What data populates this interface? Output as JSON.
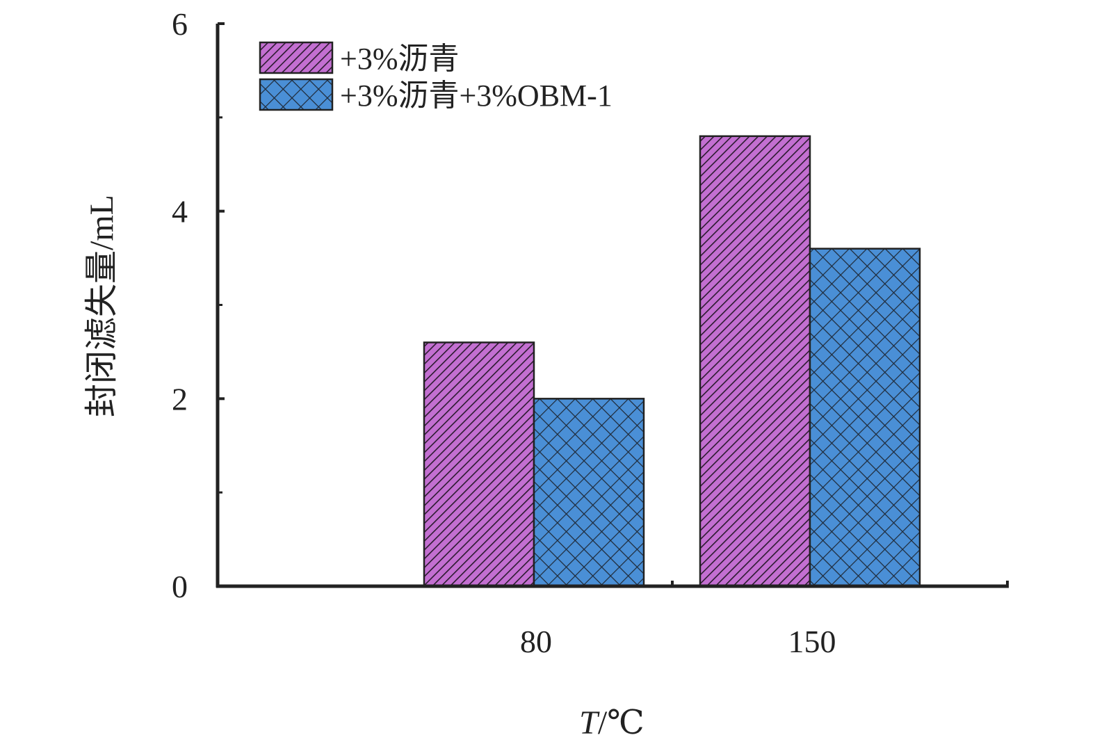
{
  "chart_data": {
    "type": "bar",
    "categories": [
      "80",
      "150"
    ],
    "series": [
      {
        "name": "+3%沥青",
        "values": [
          2.6,
          4.8
        ],
        "color": "#c36fd1",
        "pattern": "diagonal-hatch"
      },
      {
        "name": "+3%沥青+3%OBM-1",
        "values": [
          2.0,
          3.6
        ],
        "color": "#4a8fd6",
        "pattern": "cross-hatch"
      }
    ],
    "xlabel": {
      "italic": "T",
      "rest": "/℃"
    },
    "ylabel": "封闭滤失量/mL",
    "ylim": [
      0,
      6
    ],
    "yticks": [
      0,
      2,
      4,
      6
    ],
    "yticks_minor": [
      1,
      3,
      5
    ],
    "grid": false,
    "legend_position": "top-left"
  }
}
